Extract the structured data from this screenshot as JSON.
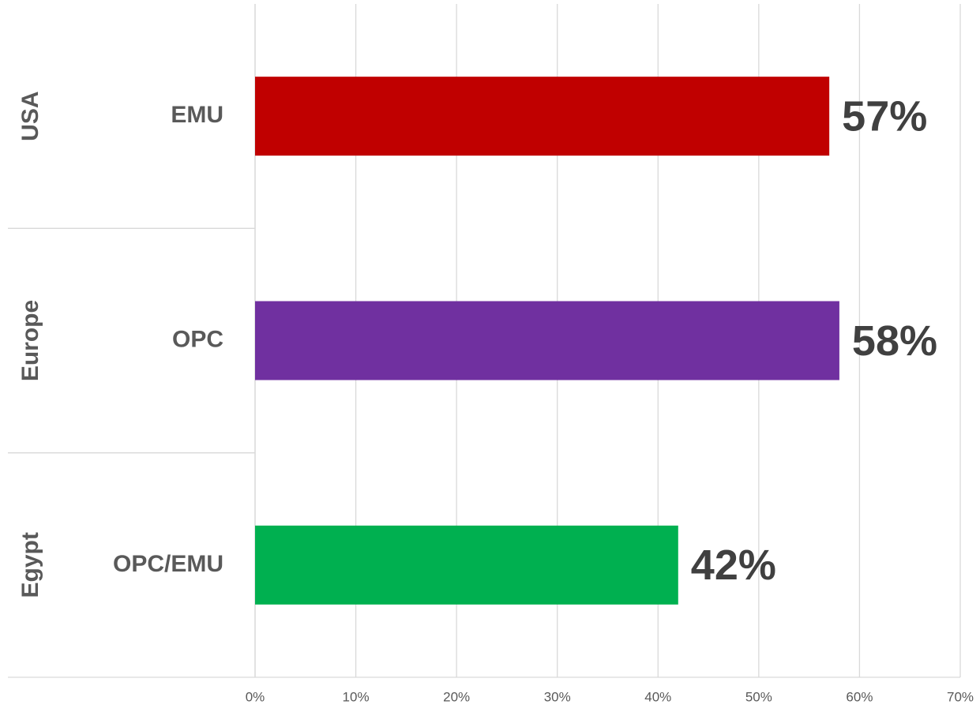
{
  "chart_data": {
    "type": "barh",
    "groups": [
      "USA",
      "Europe",
      "Egypt"
    ],
    "categories": [
      "EMU",
      "OPC",
      "OPC/EMU"
    ],
    "values": [
      57,
      58,
      42
    ],
    "value_labels": [
      "57%",
      "58%",
      "42%"
    ],
    "colors": [
      "#c00000",
      "#7030a0",
      "#00b050"
    ],
    "xlim": [
      0,
      70
    ],
    "xticks": [
      {
        "value": 0,
        "label": "0%"
      },
      {
        "value": 10,
        "label": "10%"
      },
      {
        "value": 20,
        "label": "20%"
      },
      {
        "value": 30,
        "label": "30%"
      },
      {
        "value": 40,
        "label": "40%"
      },
      {
        "value": 50,
        "label": "50%"
      },
      {
        "value": 60,
        "label": "60%"
      },
      {
        "value": 70,
        "label": "70%"
      }
    ],
    "grid": true
  }
}
